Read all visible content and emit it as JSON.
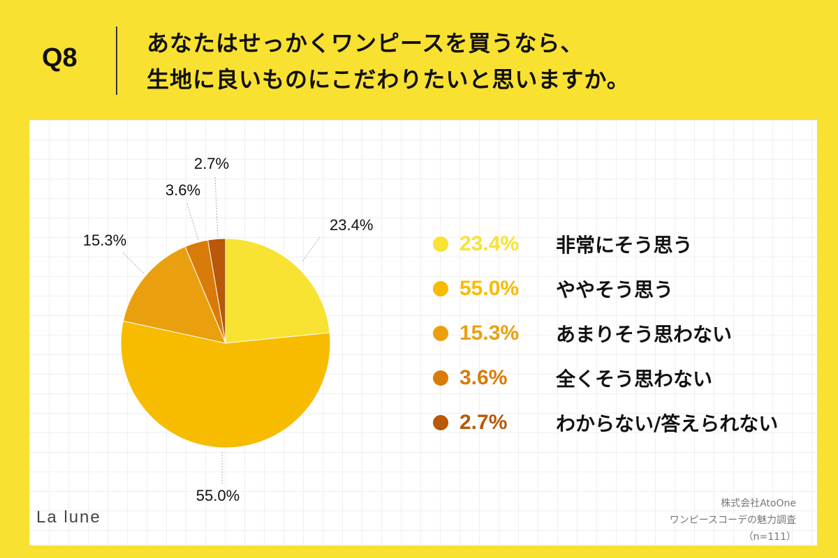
{
  "header": {
    "q_label": "Q8",
    "title_line1": "あなたはせっかくワンピースを買うなら、",
    "title_line2": "生地に良いものにこだわりたいと思いますか。"
  },
  "chart_data": {
    "type": "pie",
    "title": "あなたはせっかくワンピースを買うなら、生地に良いものにこだわりたいと思いますか。",
    "categories": [
      "非常にそう思う",
      "ややそう思う",
      "あまりそう思わない",
      "全くそう思わない",
      "わからない/答えられない"
    ],
    "values": [
      23.4,
      55.0,
      15.3,
      3.6,
      2.7
    ],
    "labels": [
      "23.4%",
      "55.0%",
      "15.3%",
      "3.6%",
      "2.7%"
    ],
    "colors": [
      "#f8e232",
      "#f7bb00",
      "#eaa00e",
      "#d97b08",
      "#b85808"
    ],
    "start": "12 o'clock, clockwise",
    "legend": "right"
  },
  "legend_items": [
    {
      "pct": "23.4%",
      "label": "非常にそう思う",
      "color": "#f8e232"
    },
    {
      "pct": "55.0%",
      "label": "ややそう思う",
      "color": "#f7bb00"
    },
    {
      "pct": "15.3%",
      "label": "あまりそう思わない",
      "color": "#eaa00e"
    },
    {
      "pct": "3.6%",
      "label": "全くそう思わない",
      "color": "#d97b08"
    },
    {
      "pct": "2.7%",
      "label": "わからない/答えられない",
      "color": "#b85808"
    }
  ],
  "footer": {
    "logo": "La lune",
    "source_line1": "株式会社AtoOne",
    "source_line2": "ワンピースコーデの魅力調査",
    "source_line3": "（n=111）"
  }
}
